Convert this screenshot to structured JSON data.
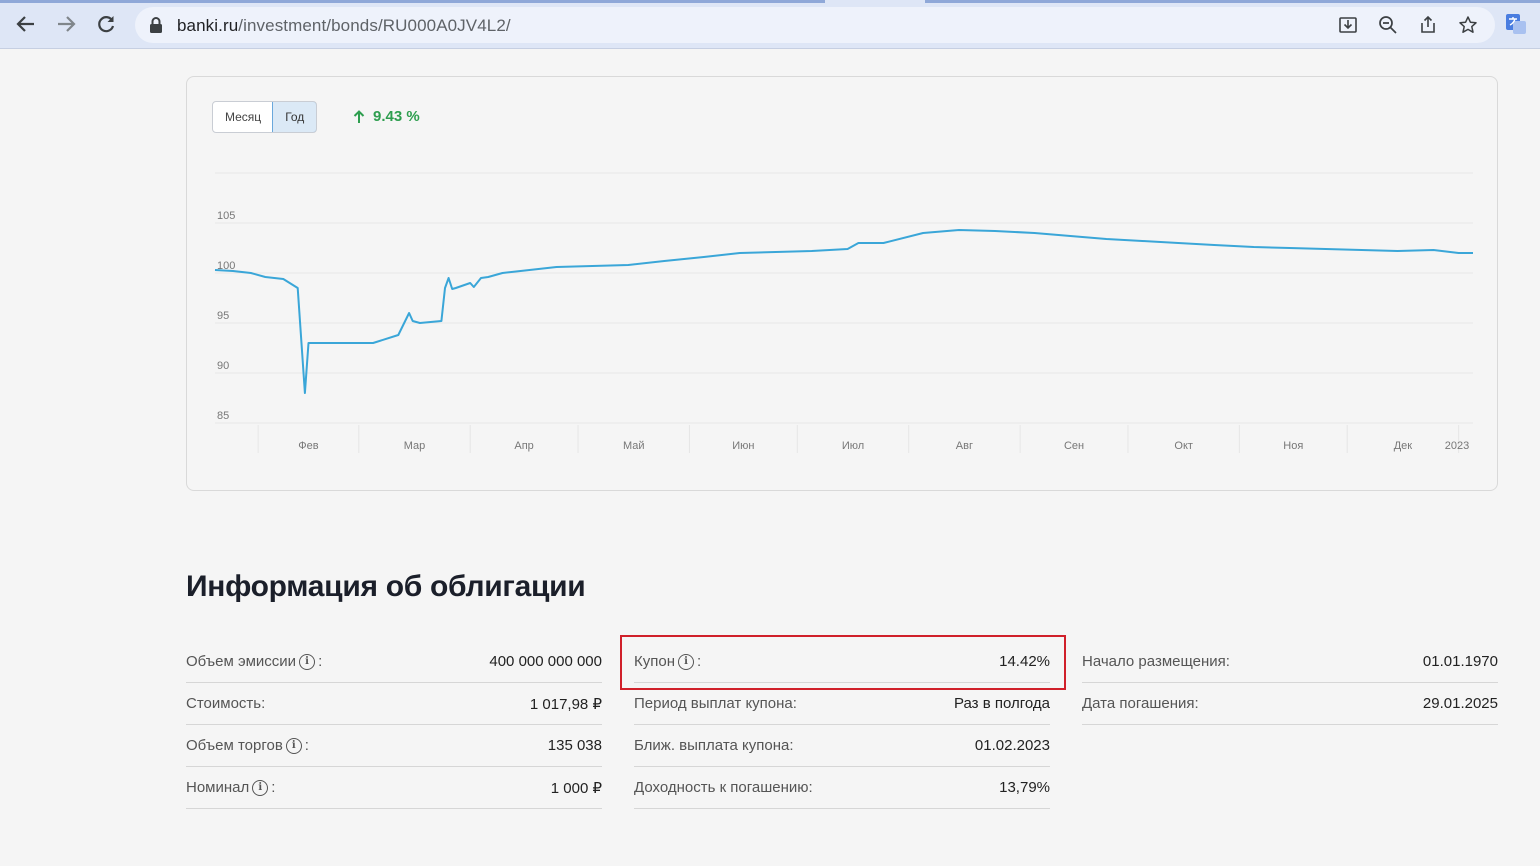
{
  "browser": {
    "url_host": "banki.ru",
    "url_path": "/investment/bonds/RU000A0JV4L2/",
    "icons": [
      "back-arrow-icon",
      "forward-arrow-icon",
      "reload-icon",
      "lock-icon",
      "install-icon",
      "zoom-icon",
      "share-icon",
      "star-icon",
      "translate-extension-icon"
    ]
  },
  "chart_panel": {
    "periods": [
      "Месяц",
      "Год"
    ],
    "active_period": "Год",
    "change_text": "9.43 %",
    "change_color": "#2e9e4f",
    "line_color": "#3aa6d8"
  },
  "chart_data": {
    "type": "line",
    "title": "",
    "xlabel": "",
    "ylabel": "",
    "x_ticks": [
      "Фев",
      "Мар",
      "Апр",
      "Май",
      "Июн",
      "Июл",
      "Авг",
      "Сен",
      "Окт",
      "Ноя",
      "Дек",
      "2023"
    ],
    "y_ticks": [
      85,
      90,
      95,
      100,
      105
    ],
    "ylim": [
      85,
      110
    ],
    "grid": true,
    "series": [
      {
        "x": [
          "2022-01-20",
          "2022-01-25",
          "2022-01-30",
          "2022-02-03",
          "2022-02-08",
          "2022-02-12",
          "2022-02-14",
          "2022-02-15",
          "2022-02-16",
          "2022-02-16",
          "2022-02-25",
          "2022-03-05",
          "2022-03-12",
          "2022-03-15",
          "2022-03-16",
          "2022-03-18",
          "2022-03-24",
          "2022-03-25",
          "2022-03-26",
          "2022-03-27",
          "2022-03-28",
          "2022-04-01",
          "2022-04-02",
          "2022-04-04",
          "2022-04-06",
          "2022-04-10",
          "2022-04-15",
          "2022-04-20",
          "2022-04-25",
          "2022-05-05",
          "2022-05-15",
          "2022-05-25",
          "2022-06-05",
          "2022-06-15",
          "2022-06-25",
          "2022-07-05",
          "2022-07-15",
          "2022-07-18",
          "2022-07-25",
          "2022-08-05",
          "2022-08-15",
          "2022-08-25",
          "2022-09-05",
          "2022-09-15",
          "2022-09-25",
          "2022-10-05",
          "2022-10-15",
          "2022-10-25",
          "2022-11-05",
          "2022-11-15",
          "2022-11-25",
          "2022-12-05",
          "2022-12-15",
          "2022-12-25",
          "2023-01-01",
          "2023-01-05"
        ],
        "y": [
          100.3,
          100.2,
          100.0,
          99.6,
          99.4,
          98.5,
          88.0,
          93.0,
          93.0,
          93.0,
          93.0,
          93.0,
          93.8,
          96.0,
          95.2,
          95.0,
          95.2,
          98.5,
          99.5,
          98.4,
          98.5,
          99.0,
          98.6,
          99.5,
          99.6,
          100.0,
          100.2,
          100.4,
          100.6,
          100.7,
          100.8,
          101.2,
          101.6,
          102.0,
          102.1,
          102.2,
          102.4,
          103.0,
          103.0,
          104.0,
          104.3,
          104.2,
          104.0,
          103.7,
          103.4,
          103.2,
          103.0,
          102.8,
          102.6,
          102.5,
          102.4,
          102.3,
          102.2,
          102.3,
          102.0,
          102.0
        ]
      }
    ]
  },
  "info": {
    "title": "Информация об облигации",
    "col1": [
      {
        "label": "Объем эмиссии",
        "info": true,
        "value": "400 000 000 000"
      },
      {
        "label": "Стоимость:",
        "info": false,
        "value": "1 017,98 ₽"
      },
      {
        "label": "Объем торгов",
        "info": true,
        "value": "135 038"
      },
      {
        "label": "Номинал",
        "info": true,
        "value": "1 000 ₽"
      }
    ],
    "col2": [
      {
        "label": "Купон",
        "info": true,
        "value": "14.42%"
      },
      {
        "label": "Период выплат купона:",
        "info": false,
        "value": "Раз в полгода"
      },
      {
        "label": "Ближ. выплата купона:",
        "info": false,
        "value": "01.02.2023"
      },
      {
        "label": "Доходность к погашению:",
        "info": false,
        "value": "13,79%"
      }
    ],
    "col3": [
      {
        "label": "Начало размещения:",
        "info": false,
        "value": "01.01.1970"
      },
      {
        "label": "Дата погашения:",
        "info": false,
        "value": "29.01.2025"
      }
    ],
    "highlight_color": "#d0202a"
  }
}
